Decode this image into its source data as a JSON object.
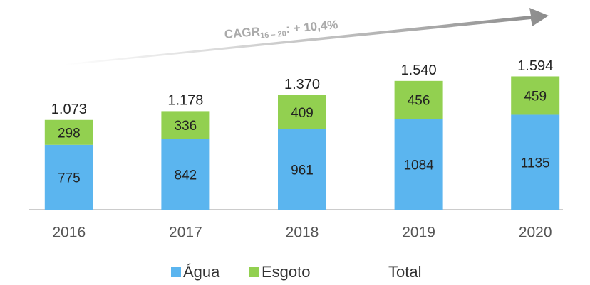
{
  "chart_data": {
    "type": "stacked_bar",
    "annotation": {
      "main": "CAGR",
      "sub": "16 – 20",
      "rest": ": + 10,4%"
    },
    "categories": [
      "2016",
      "2017",
      "2018",
      "2019",
      "2020"
    ],
    "series": [
      {
        "name": "Água",
        "color": "#5bb5ef",
        "values": [
          775,
          842,
          961,
          1084,
          1135
        ]
      },
      {
        "name": "Esgoto",
        "color": "#92d050",
        "values": [
          298,
          336,
          409,
          456,
          459
        ]
      },
      {
        "name": "Total",
        "values": [
          1073,
          1178,
          1370,
          1540,
          1594
        ],
        "value_labels": [
          "1.073",
          "1.178",
          "1.370",
          "1.540",
          "1.594"
        ]
      }
    ],
    "ylim": [
      0,
      1700
    ]
  }
}
